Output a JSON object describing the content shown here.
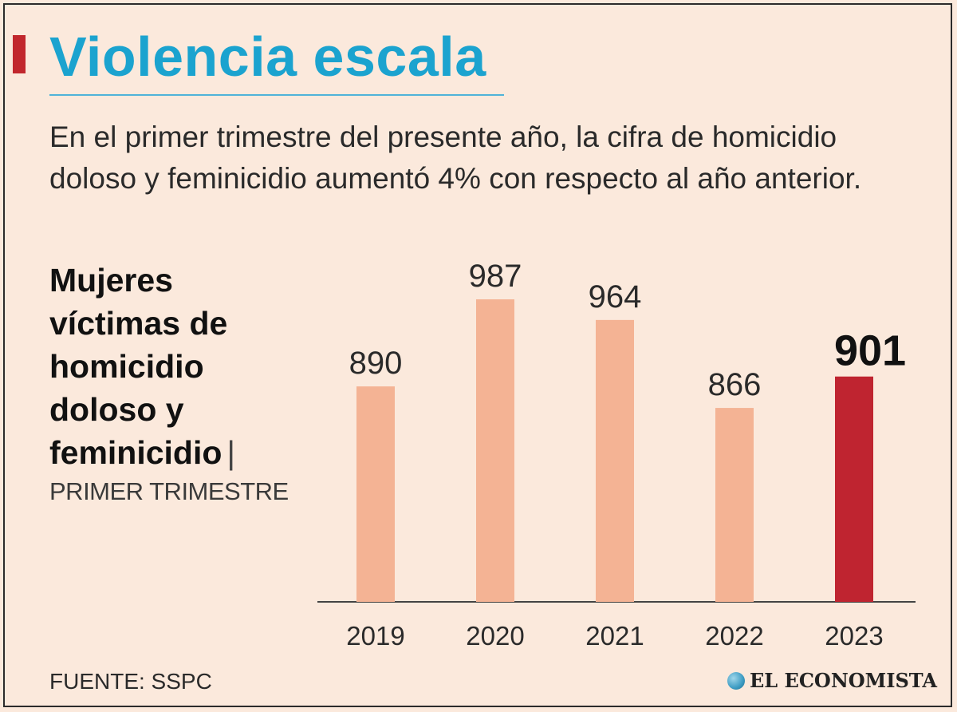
{
  "header": {
    "title": "Violencia escala",
    "subtitle": "En el primer trimestre del presente año, la cifra de homicidio doloso y feminicidio aumentó 4% con respecto al año anterior."
  },
  "chart_data": {
    "type": "bar",
    "title": "Mujeres víctimas de homicidio doloso y feminicidio",
    "title_separator": "|",
    "subtitle": "PRIMER TRIMESTRE",
    "categories": [
      "2019",
      "2020",
      "2021",
      "2022",
      "2023"
    ],
    "values": [
      890,
      987,
      964,
      866,
      901
    ],
    "value_labels": [
      "890",
      "987",
      "964",
      "866",
      "901"
    ],
    "ylim": [
      0,
      1000
    ],
    "highlight_index": 4,
    "colors": {
      "bar": "#f4b394",
      "highlight": "#bf2430",
      "axis": "#444444",
      "text": "#2a2a2a"
    },
    "grid": false,
    "legend": "none"
  },
  "footer": {
    "source": "FUENTE: SSPC",
    "brand": "EL ECONOMISTA",
    "brand_icon": "globe-icon"
  }
}
